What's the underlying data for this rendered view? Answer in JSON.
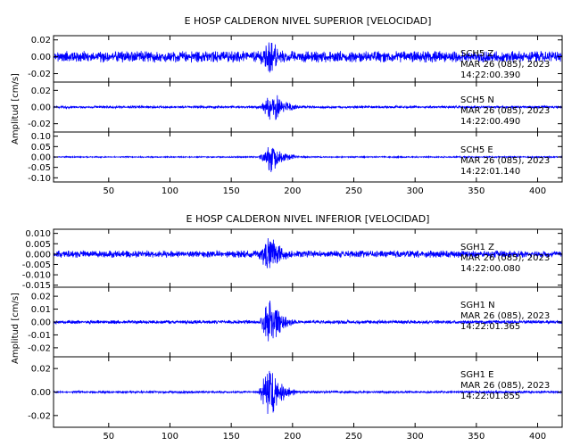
{
  "chart_data": [
    {
      "type": "line",
      "title": "E HOSP CALDERON NIVEL SUPERIOR [VELOCIDAD]",
      "ylabel": "Amplitud [cm/s]",
      "xlabel": "",
      "xlim": [
        5,
        420
      ],
      "x_ticks": [
        "50",
        "100",
        "150",
        "200",
        "250",
        "300",
        "350",
        "400"
      ],
      "line_color": "#0000ff",
      "grid": false,
      "panels": [
        {
          "station": "SCH5",
          "component": "Z",
          "date": "MAR 26 (085), 2023",
          "time": "14:22:00.390",
          "ylim": [
            -0.03,
            0.025
          ],
          "y_ticks": [
            "0.02",
            "0.00",
            "-0.02"
          ],
          "noise_amplitude": 0.007,
          "event_start_s": 170,
          "event_peak_s": 182,
          "event_peak_amplitude": 0.025
        },
        {
          "station": "SCH5",
          "component": "N",
          "date": "MAR 26 (085), 2023",
          "time": "14:22:00.490",
          "ylim": [
            -0.03,
            0.03
          ],
          "y_ticks": [
            "0.02",
            "0.00",
            "-0.02"
          ],
          "noise_amplitude": 0.0015,
          "event_start_s": 172,
          "event_peak_s": 185,
          "event_peak_amplitude": 0.022
        },
        {
          "station": "SCH5",
          "component": "E",
          "date": "MAR 26 (085), 2023",
          "time": "14:22:01.140",
          "ylim": [
            -0.12,
            0.12
          ],
          "y_ticks": [
            "0.10",
            "0.05",
            "0.00",
            "-0.05",
            "-0.10"
          ],
          "noise_amplitude": 0.003,
          "event_start_s": 172,
          "event_peak_s": 182,
          "event_peak_amplitude": 0.09
        }
      ]
    },
    {
      "type": "line",
      "title": "E HOSP CALDERON NIVEL INFERIOR [VELOCIDAD]",
      "ylabel": "Amplitud [cm/s]",
      "xlabel": "",
      "xlim": [
        5,
        420
      ],
      "x_ticks": [
        "50",
        "100",
        "150",
        "200",
        "250",
        "300",
        "350",
        "400"
      ],
      "line_color": "#0000ff",
      "grid": false,
      "panels": [
        {
          "station": "SGH1",
          "component": "Z",
          "date": "MAR 26 (085), 2023",
          "time": "14:22:00.080",
          "ylim": [
            -0.016,
            0.012
          ],
          "y_ticks": [
            "0.010",
            "0.005",
            "0.000",
            "-0.005",
            "-0.010",
            "-0.015"
          ],
          "noise_amplitude": 0.0018,
          "event_start_s": 170,
          "event_peak_s": 183,
          "event_peak_amplitude": 0.011
        },
        {
          "station": "SGH1",
          "component": "N",
          "date": "MAR 26 (085), 2023",
          "time": "14:22:01.365",
          "ylim": [
            -0.027,
            0.027
          ],
          "y_ticks": [
            "0.02",
            "0.01",
            "0.00",
            "-0.01",
            "-0.02"
          ],
          "noise_amplitude": 0.0015,
          "event_start_s": 172,
          "event_peak_s": 182,
          "event_peak_amplitude": 0.022
        },
        {
          "station": "SGH1",
          "component": "E",
          "date": "MAR 26 (085), 2023",
          "time": "14:22:01.855",
          "ylim": [
            -0.03,
            0.03
          ],
          "y_ticks": [
            "0.02",
            "0.00",
            "-0.02"
          ],
          "noise_amplitude": 0.001,
          "event_start_s": 172,
          "event_peak_s": 181,
          "event_peak_amplitude": 0.027
        }
      ]
    }
  ]
}
